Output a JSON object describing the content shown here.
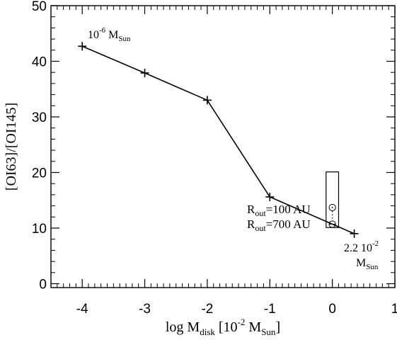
{
  "chart_data": {
    "type": "line",
    "xlabel": {
      "main": "log M",
      "sub": "disk",
      "bracket_open": " [10",
      "sup": "-2",
      "m": " M",
      "m_sub": "Sun",
      "bracket_close": "]"
    },
    "ylabel": "[OI63]/[OI145]",
    "xlim": [
      -4.5,
      1
    ],
    "ylim": [
      -0.7,
      50
    ],
    "x_ticks": [
      -4,
      -3,
      -2,
      -1,
      0,
      1
    ],
    "x_tick_labels": [
      "-4",
      "-3",
      "-2",
      "-1",
      "0",
      "1"
    ],
    "y_ticks": [
      0,
      10,
      20,
      30,
      40,
      50
    ],
    "y_tick_labels": [
      "0",
      "10",
      "20",
      "30",
      "40",
      "50"
    ],
    "grid": false,
    "series": [
      {
        "x": [
          -4,
          -3,
          -2,
          -1,
          0.35
        ],
        "y": [
          42.7,
          37.9,
          33.0,
          15.6,
          9.0
        ]
      }
    ],
    "observation_box": {
      "x_range": [
        -0.1,
        0.1
      ],
      "y_range": [
        10.1,
        20.1
      ]
    },
    "observation_points": [
      {
        "x": 0,
        "y": 13.7
      },
      {
        "x": 0,
        "y": 10.7
      }
    ],
    "annotations": {
      "top": {
        "base": "10",
        "sup": "-6",
        "m": " M",
        "sub": "Sun"
      },
      "rout100": {
        "r": "R",
        "sub": "out",
        "rest": "=100 AU"
      },
      "rout700": {
        "r": "R",
        "sub": "out",
        "rest": "=700 AU"
      },
      "bottom_line1": {
        "base": "2.2 10",
        "sup": "-2"
      },
      "bottom_line2": {
        "m": "M",
        "sub": "Sun"
      }
    }
  }
}
